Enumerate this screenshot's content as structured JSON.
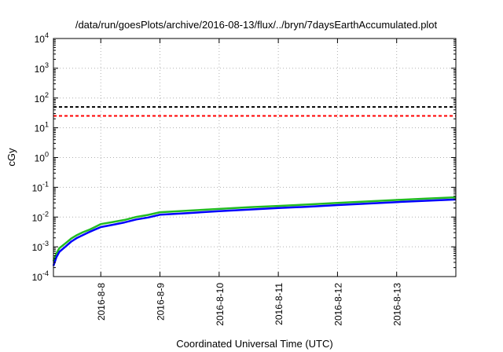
{
  "chart_data": {
    "type": "line",
    "title": "/data/run/goesPlots/archive/2016-08-13/flux/../bryn/7daysEarthAccumulated.plot",
    "xlabel": "Coordinated Universal Time (UTC)",
    "ylabel": "cGy",
    "yscale": "log",
    "ylim": [
      0.0001,
      10000
    ],
    "xlim": [
      7.2,
      14.0
    ],
    "grid": true,
    "y_ticks": [
      {
        "value": 0.0001,
        "base": "10",
        "exp": "-4"
      },
      {
        "value": 0.001,
        "base": "10",
        "exp": "-3"
      },
      {
        "value": 0.01,
        "base": "10",
        "exp": "-2"
      },
      {
        "value": 0.1,
        "base": "10",
        "exp": "-1"
      },
      {
        "value": 1,
        "base": "10",
        "exp": "0"
      },
      {
        "value": 10,
        "base": "10",
        "exp": "1"
      },
      {
        "value": 100,
        "base": "10",
        "exp": "2"
      },
      {
        "value": 1000,
        "base": "10",
        "exp": "3"
      },
      {
        "value": 10000,
        "base": "10",
        "exp": "4"
      }
    ],
    "x_ticks": [
      {
        "value": 8,
        "label": "2016-8-8"
      },
      {
        "value": 9,
        "label": "2016-8-9"
      },
      {
        "value": 10,
        "label": "2016-8-10"
      },
      {
        "value": 11,
        "label": "2016-8-11"
      },
      {
        "value": 12,
        "label": "2016-8-12"
      },
      {
        "value": 13,
        "label": "2016-8-13"
      }
    ],
    "reference_lines": [
      {
        "y": 50,
        "color": "#000000",
        "dashed": true
      },
      {
        "y": 25,
        "color": "#ff0000",
        "dashed": true
      }
    ],
    "series": [
      {
        "color": "#22bb22",
        "x": [
          7.2,
          7.25,
          7.3,
          7.4,
          7.5,
          7.6,
          7.7,
          7.8,
          7.9,
          8.0,
          8.2,
          8.4,
          8.6,
          8.8,
          9.0,
          9.5,
          10.0,
          10.5,
          11.0,
          11.5,
          12.0,
          12.5,
          13.0,
          13.5,
          14.0
        ],
        "y": [
          0.00033,
          0.0006,
          0.0009,
          0.0013,
          0.0019,
          0.0025,
          0.0031,
          0.0037,
          0.0046,
          0.0058,
          0.0068,
          0.008,
          0.0101,
          0.0118,
          0.0145,
          0.0165,
          0.0188,
          0.0213,
          0.0237,
          0.0265,
          0.03,
          0.0335,
          0.0375,
          0.0415,
          0.046
        ]
      },
      {
        "color": "#0000ff",
        "x": [
          7.2,
          7.25,
          7.3,
          7.4,
          7.5,
          7.6,
          7.7,
          7.8,
          7.9,
          8.0,
          8.2,
          8.4,
          8.6,
          8.8,
          9.0,
          9.5,
          10.0,
          10.5,
          11.0,
          11.5,
          12.0,
          12.5,
          13.0,
          13.5,
          14.0
        ],
        "y": [
          0.00023,
          0.00045,
          0.00068,
          0.001,
          0.0015,
          0.002,
          0.0025,
          0.0031,
          0.0038,
          0.0046,
          0.0055,
          0.0066,
          0.0083,
          0.0097,
          0.012,
          0.0137,
          0.0158,
          0.0178,
          0.02,
          0.0223,
          0.0253,
          0.0283,
          0.0318,
          0.0353,
          0.039
        ]
      }
    ]
  }
}
